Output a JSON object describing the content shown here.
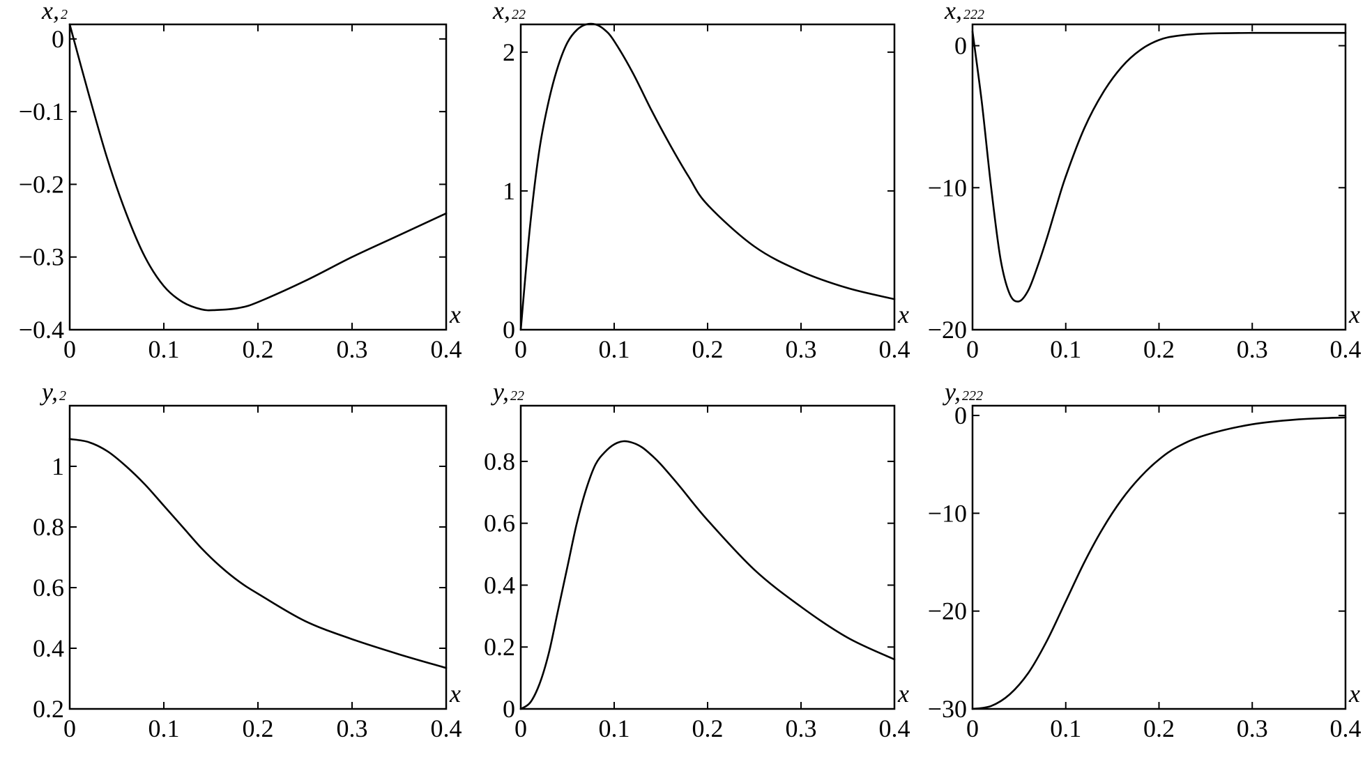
{
  "chart_data": [
    {
      "type": "line",
      "ylabel": "x,",
      "ylabel_sub": "2",
      "xlabel": "x",
      "xlim": [
        0,
        0.4
      ],
      "ylim": [
        -0.4,
        0.02
      ],
      "xticks": [
        0,
        0.1,
        0.2,
        0.3,
        0.4
      ],
      "xtick_labels": [
        "0",
        "0.1",
        "0.2",
        "0.3",
        "0.4"
      ],
      "yticks": [
        0,
        -0.1,
        -0.2,
        -0.3,
        -0.4
      ],
      "ytick_labels": [
        "0",
        "−0.1",
        "−0.2",
        "−0.3",
        "−0.4"
      ],
      "grid": false,
      "series": [
        {
          "x": [
            0,
            0.02,
            0.04,
            0.06,
            0.08,
            0.1,
            0.12,
            0.14,
            0.155,
            0.18,
            0.2,
            0.25,
            0.3,
            0.35,
            0.4
          ],
          "y": [
            0.02,
            -0.075,
            -0.165,
            -0.24,
            -0.3,
            -0.34,
            -0.362,
            -0.372,
            -0.373,
            -0.37,
            -0.362,
            -0.333,
            -0.3,
            -0.27,
            -0.24
          ]
        }
      ]
    },
    {
      "type": "line",
      "ylabel": "x,",
      "ylabel_sub": "22",
      "xlabel": "x",
      "xlim": [
        0,
        0.4
      ],
      "ylim": [
        0,
        2.2
      ],
      "xticks": [
        0,
        0.1,
        0.2,
        0.3,
        0.4
      ],
      "xtick_labels": [
        "0",
        "0.1",
        "0.2",
        "0.3",
        "0.4"
      ],
      "yticks": [
        0,
        1,
        2
      ],
      "ytick_labels": [
        "0",
        "1",
        "2"
      ],
      "grid": false,
      "series": [
        {
          "x": [
            0,
            0.01,
            0.02,
            0.03,
            0.04,
            0.05,
            0.06,
            0.07,
            0.08,
            0.09,
            0.1,
            0.12,
            0.14,
            0.16,
            0.18,
            0.2,
            0.25,
            0.3,
            0.35,
            0.4
          ],
          "y": [
            0,
            0.75,
            1.3,
            1.65,
            1.9,
            2.07,
            2.16,
            2.2,
            2.2,
            2.16,
            2.08,
            1.85,
            1.58,
            1.33,
            1.1,
            0.9,
            0.6,
            0.42,
            0.3,
            0.22
          ]
        }
      ]
    },
    {
      "type": "line",
      "ylabel": "x,",
      "ylabel_sub": "222",
      "xlabel": "x",
      "xlim": [
        0,
        0.4
      ],
      "ylim": [
        -20,
        1.5
      ],
      "xticks": [
        0,
        0.1,
        0.2,
        0.3,
        0.4
      ],
      "xtick_labels": [
        "0",
        "0.1",
        "0.2",
        "0.3",
        "0.4"
      ],
      "yticks": [
        0,
        -10,
        -20
      ],
      "ytick_labels": [
        "0",
        "−10",
        "−20"
      ],
      "grid": false,
      "series": [
        {
          "x": [
            0,
            0.01,
            0.02,
            0.03,
            0.04,
            0.05,
            0.06,
            0.07,
            0.08,
            0.09,
            0.1,
            0.12,
            0.14,
            0.16,
            0.18,
            0.2,
            0.22,
            0.25,
            0.3,
            0.35,
            0.4
          ],
          "y": [
            1,
            -4,
            -10,
            -15,
            -17.5,
            -18,
            -17.2,
            -15.5,
            -13.5,
            -11.3,
            -9.2,
            -5.8,
            -3.3,
            -1.5,
            -0.3,
            0.4,
            0.7,
            0.85,
            0.9,
            0.9,
            0.9
          ]
        }
      ]
    },
    {
      "type": "line",
      "ylabel": "y,",
      "ylabel_sub": "2",
      "xlabel": "x",
      "xlim": [
        0,
        0.4
      ],
      "ylim": [
        0.2,
        1.2
      ],
      "xticks": [
        0,
        0.1,
        0.2,
        0.3,
        0.4
      ],
      "xtick_labels": [
        "0",
        "0.1",
        "0.2",
        "0.3",
        "0.4"
      ],
      "yticks": [
        0.2,
        0.4,
        0.6,
        0.8,
        1
      ],
      "ytick_labels": [
        "0.2",
        "0.4",
        "0.6",
        "0.8",
        "1"
      ],
      "grid": false,
      "series": [
        {
          "x": [
            0,
            0.02,
            0.04,
            0.06,
            0.08,
            0.1,
            0.12,
            0.14,
            0.16,
            0.18,
            0.2,
            0.25,
            0.3,
            0.35,
            0.4
          ],
          "y": [
            1.09,
            1.08,
            1.05,
            1.0,
            0.94,
            0.87,
            0.8,
            0.73,
            0.67,
            0.62,
            0.58,
            0.49,
            0.43,
            0.38,
            0.335
          ]
        }
      ]
    },
    {
      "type": "line",
      "ylabel": "y,",
      "ylabel_sub": "22",
      "xlabel": "x",
      "xlim": [
        0,
        0.4
      ],
      "ylim": [
        0,
        0.98
      ],
      "xticks": [
        0,
        0.1,
        0.2,
        0.3,
        0.4
      ],
      "xtick_labels": [
        "0",
        "0.1",
        "0.2",
        "0.3",
        "0.4"
      ],
      "yticks": [
        0,
        0.2,
        0.4,
        0.6,
        0.8
      ],
      "ytick_labels": [
        "0",
        "0.2",
        "0.4",
        "0.6",
        "0.8"
      ],
      "grid": false,
      "series": [
        {
          "x": [
            0,
            0.01,
            0.02,
            0.03,
            0.04,
            0.05,
            0.06,
            0.07,
            0.08,
            0.09,
            0.1,
            0.11,
            0.12,
            0.13,
            0.14,
            0.15,
            0.17,
            0.2,
            0.25,
            0.3,
            0.35,
            0.4
          ],
          "y": [
            0,
            0.02,
            0.08,
            0.18,
            0.32,
            0.46,
            0.6,
            0.71,
            0.79,
            0.83,
            0.855,
            0.865,
            0.86,
            0.845,
            0.82,
            0.79,
            0.72,
            0.61,
            0.45,
            0.33,
            0.23,
            0.16
          ]
        }
      ]
    },
    {
      "type": "line",
      "ylabel": "y,",
      "ylabel_sub": "222",
      "xlabel": "x",
      "xlim": [
        0,
        0.4
      ],
      "ylim": [
        -30,
        1
      ],
      "xticks": [
        0,
        0.1,
        0.2,
        0.3,
        0.4
      ],
      "xtick_labels": [
        "0",
        "0.1",
        "0.2",
        "0.3",
        "0.4"
      ],
      "yticks": [
        0,
        -10,
        -20,
        -30
      ],
      "ytick_labels": [
        "0",
        "−10",
        "−20",
        "−30"
      ],
      "grid": false,
      "series": [
        {
          "x": [
            0,
            0.02,
            0.04,
            0.06,
            0.08,
            0.1,
            0.12,
            0.14,
            0.16,
            0.18,
            0.2,
            0.22,
            0.25,
            0.3,
            0.35,
            0.4
          ],
          "y": [
            -30,
            -29.7,
            -28.5,
            -26.3,
            -23,
            -19,
            -15,
            -11.5,
            -8.6,
            -6.3,
            -4.5,
            -3.2,
            -2,
            -0.9,
            -0.4,
            -0.2
          ]
        }
      ]
    }
  ]
}
